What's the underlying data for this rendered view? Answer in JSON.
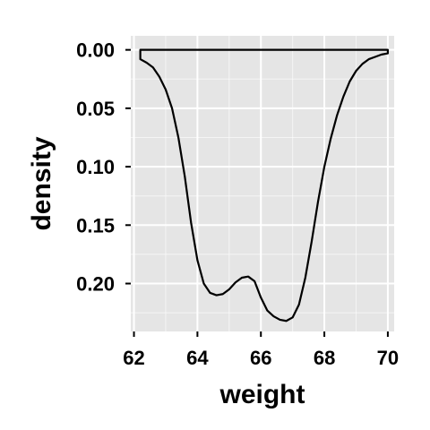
{
  "chart_data": {
    "type": "area",
    "xlabel": "weight",
    "ylabel": "density",
    "x_reversed": false,
    "y_reversed": true,
    "xlim": [
      61.9,
      70.2
    ],
    "ylim": [
      -0.012,
      0.241
    ],
    "x_ticks": [
      62,
      64,
      66,
      68,
      70
    ],
    "x_tick_labels": [
      "62",
      "64",
      "66",
      "68",
      "70"
    ],
    "y_ticks": [
      0.0,
      0.05,
      0.1,
      0.15,
      0.2
    ],
    "y_tick_labels": [
      "0.00",
      "0.05",
      "0.10",
      "0.15",
      "0.20"
    ],
    "grid": true,
    "panel_color": "#e5e5e5",
    "grid_color": "#ffffff",
    "line_color": "#000000",
    "fill": "none",
    "series": [
      {
        "x": [
          62.2,
          62.4,
          62.6,
          62.8,
          63.0,
          63.2,
          63.4,
          63.6,
          63.8,
          64.0,
          64.2,
          64.4,
          64.6,
          64.8,
          65.0,
          65.2,
          65.4,
          65.6,
          65.8,
          66.0,
          66.2,
          66.4,
          66.6,
          66.8,
          67.0,
          67.2,
          67.4,
          67.6,
          67.8,
          68.0,
          68.2,
          68.4,
          68.6,
          68.8,
          69.0,
          69.2,
          69.4,
          69.6,
          69.8,
          70.0
        ],
        "y": [
          0.008,
          0.011,
          0.015,
          0.023,
          0.034,
          0.05,
          0.075,
          0.108,
          0.148,
          0.18,
          0.2,
          0.208,
          0.21,
          0.209,
          0.205,
          0.199,
          0.195,
          0.194,
          0.198,
          0.212,
          0.223,
          0.228,
          0.231,
          0.232,
          0.229,
          0.218,
          0.195,
          0.164,
          0.13,
          0.1,
          0.076,
          0.056,
          0.04,
          0.027,
          0.018,
          0.012,
          0.008,
          0.006,
          0.004,
          0.003
        ]
      }
    ]
  }
}
